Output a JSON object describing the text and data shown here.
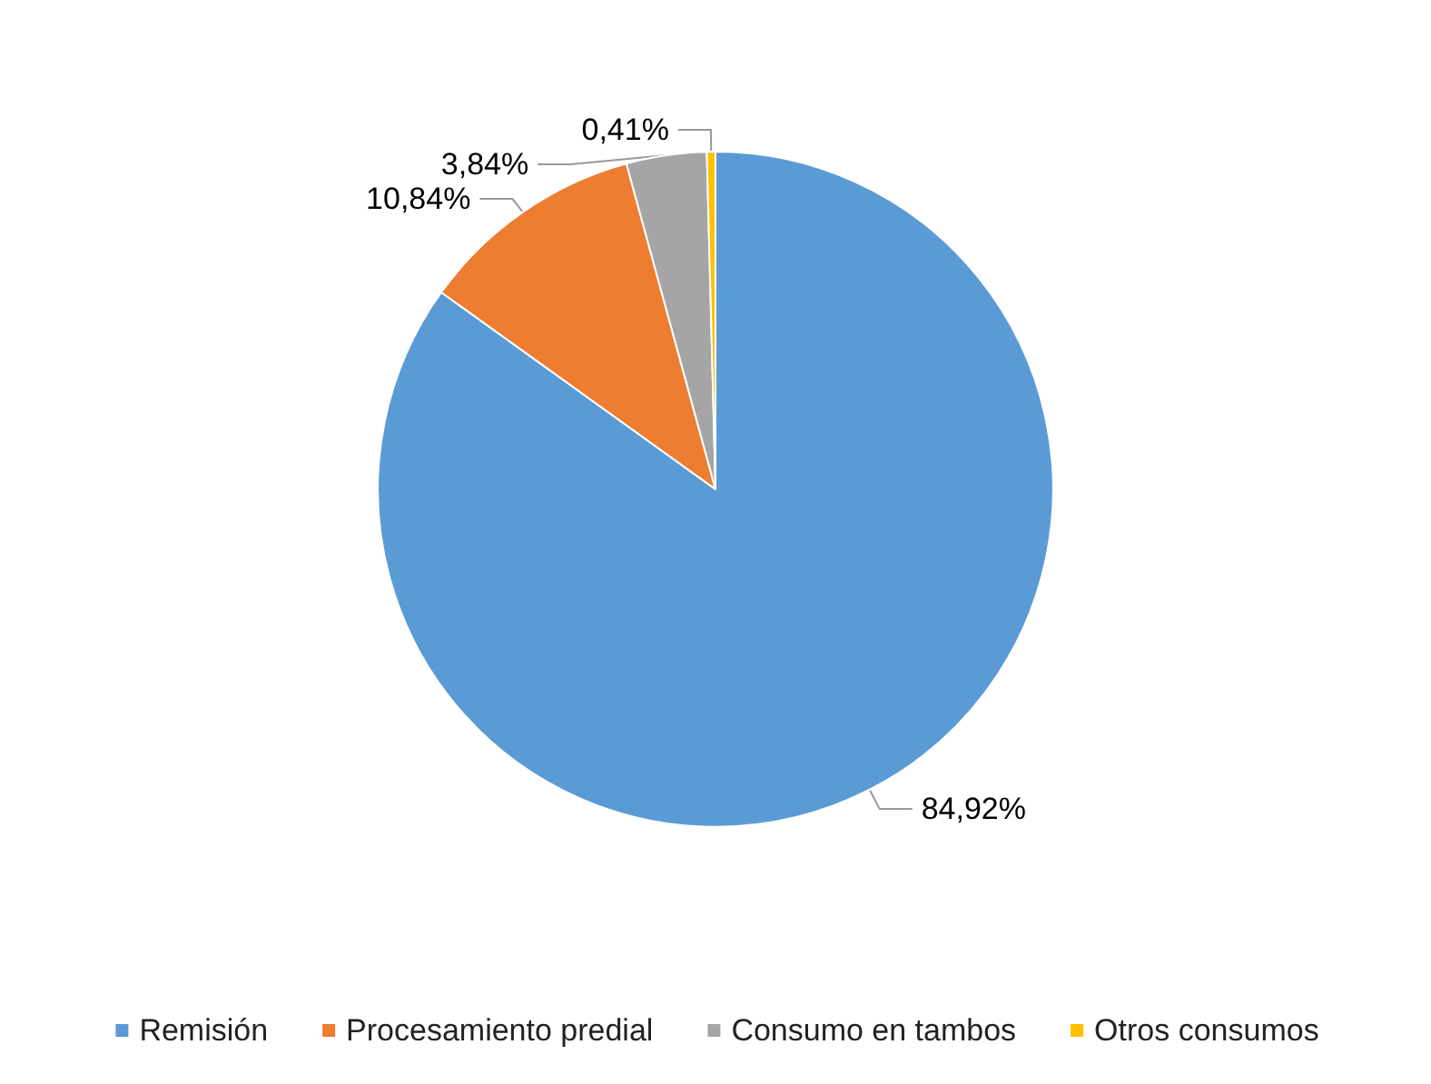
{
  "chart_data": {
    "type": "pie",
    "categories": [
      "Remisión",
      "Procesamiento predial",
      "Consumo en tambos",
      "Otros consumos"
    ],
    "values": [
      84.92,
      10.84,
      3.84,
      0.41
    ],
    "colors": [
      "#5b9bd5",
      "#ed7d31",
      "#a5a5a5",
      "#ffc000"
    ],
    "value_labels": [
      "84,92%",
      "10,84%",
      "3,84%",
      "0,41%"
    ],
    "legend": "bottom"
  }
}
